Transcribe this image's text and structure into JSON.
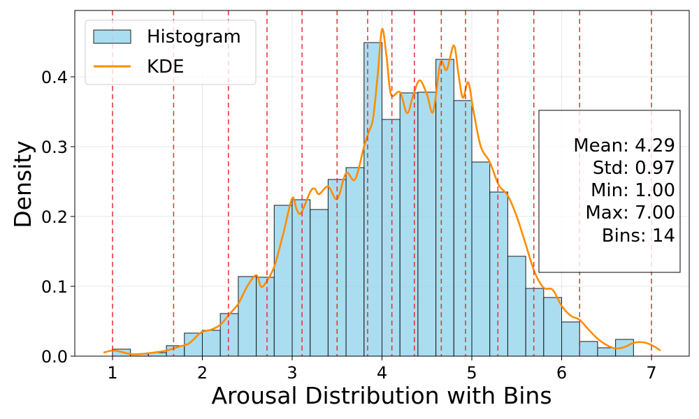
{
  "chart_data": {
    "type": "bar",
    "xlabel": "Arousal Distribution with Bins",
    "ylabel": "Density",
    "xlim": [
      0.58,
      7.42
    ],
    "ylim": [
      0,
      0.495
    ],
    "xticks": [
      1,
      2,
      3,
      4,
      5,
      6,
      7
    ],
    "yticks": [
      0.0,
      0.1,
      0.2,
      0.3,
      0.4
    ],
    "ytick_labels": [
      "0.0",
      "0.1",
      "0.2",
      "0.3",
      "0.4"
    ],
    "grid": true,
    "legend_position": "top-left",
    "colors": {
      "bar_fill": "#87CEEB",
      "bar_edge": "#1a1a1a",
      "kde": "#ff8c00",
      "bin_lines": "#e8232a"
    },
    "histogram": {
      "name": "Histogram",
      "bin_width": 0.2,
      "bins": [
        {
          "x0": 1.0,
          "x1": 1.2,
          "density": 0.01
        },
        {
          "x0": 1.2,
          "x1": 1.4,
          "density": 0.003
        },
        {
          "x0": 1.4,
          "x1": 1.6,
          "density": 0.005
        },
        {
          "x0": 1.6,
          "x1": 1.8,
          "density": 0.015
        },
        {
          "x0": 1.8,
          "x1": 2.0,
          "density": 0.033
        },
        {
          "x0": 2.0,
          "x1": 2.2,
          "density": 0.037
        },
        {
          "x0": 2.2,
          "x1": 2.4,
          "density": 0.061
        },
        {
          "x0": 2.4,
          "x1": 2.6,
          "density": 0.114
        },
        {
          "x0": 2.6,
          "x1": 2.8,
          "density": 0.113
        },
        {
          "x0": 2.8,
          "x1": 3.0,
          "density": 0.216
        },
        {
          "x0": 3.0,
          "x1": 3.2,
          "density": 0.224
        },
        {
          "x0": 3.2,
          "x1": 3.4,
          "density": 0.21
        },
        {
          "x0": 3.4,
          "x1": 3.6,
          "density": 0.253
        },
        {
          "x0": 3.6,
          "x1": 3.8,
          "density": 0.27
        },
        {
          "x0": 3.8,
          "x1": 4.0,
          "density": 0.449
        },
        {
          "x0": 4.0,
          "x1": 4.2,
          "density": 0.339
        },
        {
          "x0": 4.2,
          "x1": 4.4,
          "density": 0.377
        },
        {
          "x0": 4.4,
          "x1": 4.6,
          "density": 0.378
        },
        {
          "x0": 4.6,
          "x1": 4.8,
          "density": 0.425
        },
        {
          "x0": 4.8,
          "x1": 5.0,
          "density": 0.366
        },
        {
          "x0": 5.0,
          "x1": 5.2,
          "density": 0.278
        },
        {
          "x0": 5.2,
          "x1": 5.4,
          "density": 0.235
        },
        {
          "x0": 5.4,
          "x1": 5.6,
          "density": 0.143
        },
        {
          "x0": 5.6,
          "x1": 5.8,
          "density": 0.097
        },
        {
          "x0": 5.8,
          "x1": 6.0,
          "density": 0.084
        },
        {
          "x0": 6.0,
          "x1": 6.2,
          "density": 0.049
        },
        {
          "x0": 6.2,
          "x1": 6.4,
          "density": 0.021
        },
        {
          "x0": 6.4,
          "x1": 6.6,
          "density": 0.012
        },
        {
          "x0": 6.6,
          "x1": 6.8,
          "density": 0.024
        }
      ]
    },
    "kde": {
      "name": "KDE",
      "points": [
        [
          0.9,
          0.005
        ],
        [
          1.0,
          0.008
        ],
        [
          1.1,
          0.006
        ],
        [
          1.2,
          0.003
        ],
        [
          1.3,
          0.003
        ],
        [
          1.45,
          0.005
        ],
        [
          1.6,
          0.008
        ],
        [
          1.75,
          0.014
        ],
        [
          1.85,
          0.018
        ],
        [
          1.95,
          0.03
        ],
        [
          2.0,
          0.035
        ],
        [
          2.1,
          0.038
        ],
        [
          2.2,
          0.045
        ],
        [
          2.3,
          0.06
        ],
        [
          2.4,
          0.075
        ],
        [
          2.5,
          0.1
        ],
        [
          2.6,
          0.116
        ],
        [
          2.65,
          0.1
        ],
        [
          2.7,
          0.104
        ],
        [
          2.8,
          0.128
        ],
        [
          2.9,
          0.175
        ],
        [
          3.0,
          0.226
        ],
        [
          3.05,
          0.21
        ],
        [
          3.1,
          0.205
        ],
        [
          3.2,
          0.235
        ],
        [
          3.25,
          0.24
        ],
        [
          3.3,
          0.232
        ],
        [
          3.4,
          0.243
        ],
        [
          3.5,
          0.225
        ],
        [
          3.6,
          0.262
        ],
        [
          3.7,
          0.253
        ],
        [
          3.8,
          0.3
        ],
        [
          3.85,
          0.32
        ],
        [
          3.9,
          0.34
        ],
        [
          3.95,
          0.4
        ],
        [
          4.0,
          0.468
        ],
        [
          4.05,
          0.43
        ],
        [
          4.1,
          0.375
        ],
        [
          4.2,
          0.378
        ],
        [
          4.28,
          0.348
        ],
        [
          4.35,
          0.375
        ],
        [
          4.42,
          0.395
        ],
        [
          4.5,
          0.375
        ],
        [
          4.57,
          0.35
        ],
        [
          4.65,
          0.42
        ],
        [
          4.72,
          0.41
        ],
        [
          4.8,
          0.445
        ],
        [
          4.85,
          0.405
        ],
        [
          4.9,
          0.37
        ],
        [
          4.96,
          0.392
        ],
        [
          5.02,
          0.35
        ],
        [
          5.1,
          0.3
        ],
        [
          5.2,
          0.278
        ],
        [
          5.3,
          0.245
        ],
        [
          5.4,
          0.23
        ],
        [
          5.5,
          0.2
        ],
        [
          5.6,
          0.16
        ],
        [
          5.7,
          0.12
        ],
        [
          5.8,
          0.098
        ],
        [
          5.9,
          0.095
        ],
        [
          6.0,
          0.072
        ],
        [
          6.1,
          0.058
        ],
        [
          6.2,
          0.052
        ],
        [
          6.3,
          0.038
        ],
        [
          6.4,
          0.025
        ],
        [
          6.5,
          0.016
        ],
        [
          6.6,
          0.011
        ],
        [
          6.7,
          0.013
        ],
        [
          6.8,
          0.019
        ],
        [
          6.9,
          0.02
        ],
        [
          7.0,
          0.016
        ],
        [
          7.1,
          0.008
        ]
      ]
    },
    "bin_lines": [
      1.0,
      1.68,
      2.29,
      2.72,
      3.11,
      3.5,
      3.84,
      4.11,
      4.36,
      4.66,
      4.93,
      5.29,
      5.69,
      6.2,
      7.0
    ],
    "legend": [
      {
        "label": "Histogram",
        "kind": "patch"
      },
      {
        "label": "KDE",
        "kind": "line"
      }
    ],
    "stats": [
      "Mean: 4.29",
      "Std: 0.97",
      "Min: 1.00",
      "Max: 7.00",
      "Bins: 14"
    ]
  }
}
